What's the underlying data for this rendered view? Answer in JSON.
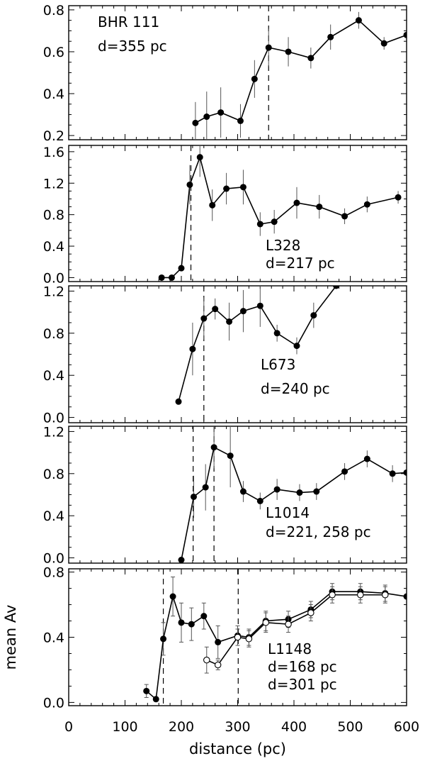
{
  "chart_data": [
    {
      "type": "line",
      "name": "BHR 111",
      "annotation": [
        "BHR 111",
        "d=355 pc"
      ],
      "xlim": [
        0,
        600
      ],
      "ylim": [
        0.18,
        0.82
      ],
      "yticks": [
        0.2,
        0.4,
        0.6,
        0.8
      ],
      "yticklabels": [
        "0.2",
        "0.4",
        "0.6",
        "0.8"
      ],
      "distance_markers": [
        355
      ],
      "series": [
        {
          "marker": "filled",
          "x": [
            225,
            245,
            270,
            305,
            330,
            355,
            390,
            430,
            465,
            515,
            560,
            600
          ],
          "y": [
            0.26,
            0.29,
            0.31,
            0.27,
            0.47,
            0.62,
            0.6,
            0.57,
            0.67,
            0.75,
            0.64,
            0.68
          ],
          "err": [
            0.1,
            0.12,
            0.12,
            0.08,
            0.09,
            0.09,
            0.07,
            0.05,
            0.06,
            0.04,
            0.03,
            0.0
          ]
        }
      ]
    },
    {
      "type": "line",
      "name": "L328",
      "annotation": [
        "L328",
        "d=217 pc"
      ],
      "xlim": [
        0,
        600
      ],
      "ylim": [
        -0.05,
        1.68
      ],
      "yticks": [
        0.0,
        0.4,
        0.8,
        1.2,
        1.6
      ],
      "yticklabels": [
        "0.0",
        "0.4",
        "0.8",
        "1.2",
        "1.6"
      ],
      "distance_markers": [
        217
      ],
      "series": [
        {
          "marker": "filled",
          "x": [
            165,
            183,
            200,
            215,
            233,
            255,
            280,
            310,
            340,
            365,
            405,
            445,
            490,
            530,
            585
          ],
          "y": [
            0.0,
            0.0,
            0.12,
            1.18,
            1.53,
            0.92,
            1.13,
            1.15,
            0.68,
            0.71,
            0.95,
            0.9,
            0.78,
            0.93,
            1.02
          ],
          "err": [
            0.0,
            0.0,
            0.0,
            0.25,
            0.25,
            0.2,
            0.2,
            0.22,
            0.15,
            0.15,
            0.2,
            0.15,
            0.1,
            0.1,
            0.08
          ]
        }
      ]
    },
    {
      "type": "line",
      "name": "L673",
      "annotation": [
        "L673",
        "d=240 pc"
      ],
      "xlim": [
        0,
        600
      ],
      "ylim": [
        -0.05,
        1.25
      ],
      "yticks": [
        0.0,
        0.4,
        0.8,
        1.2
      ],
      "yticklabels": [
        "0.0",
        "0.4",
        "0.8",
        "1.2"
      ],
      "distance_markers": [
        240
      ],
      "series": [
        {
          "marker": "filled",
          "x": [
            195,
            220,
            240,
            260,
            285,
            310,
            340,
            370,
            405,
            435,
            475
          ],
          "y": [
            0.15,
            0.65,
            0.94,
            1.03,
            0.91,
            1.01,
            1.06,
            0.8,
            0.68,
            0.97,
            1.25
          ],
          "err": [
            0.0,
            0.25,
            0.2,
            0.1,
            0.18,
            0.2,
            0.2,
            0.08,
            0.08,
            0.12,
            0.0
          ]
        }
      ]
    },
    {
      "type": "line",
      "name": "L1014",
      "annotation": [
        "L1014",
        "d=221, 258 pc"
      ],
      "xlim": [
        0,
        600
      ],
      "ylim": [
        -0.05,
        1.25
      ],
      "yticks": [
        0.0,
        0.4,
        0.8,
        1.2
      ],
      "yticklabels": [
        "0.0",
        "0.4",
        "0.8",
        "1.2"
      ],
      "distance_markers": [
        221,
        258
      ],
      "series": [
        {
          "marker": "filled",
          "x": [
            200,
            222,
            243,
            258,
            287,
            310,
            340,
            370,
            410,
            440,
            490,
            530,
            575,
            600
          ],
          "y": [
            -0.02,
            0.58,
            0.67,
            1.05,
            0.97,
            0.63,
            0.54,
            0.65,
            0.62,
            0.63,
            0.82,
            0.94,
            0.8,
            0.81
          ],
          "err": [
            0.0,
            0.2,
            0.22,
            0.2,
            0.3,
            0.1,
            0.08,
            0.1,
            0.08,
            0.08,
            0.08,
            0.08,
            0.08,
            0.0
          ]
        }
      ]
    },
    {
      "type": "line",
      "name": "L1148",
      "annotation": [
        "L1148",
        "d=168 pc",
        "d=301 pc"
      ],
      "xlabel": "distance (pc)",
      "ylabel": "mean Av",
      "xlim": [
        0,
        600
      ],
      "ylim": [
        -0.02,
        0.82
      ],
      "xticks": [
        0,
        100,
        200,
        300,
        400,
        500,
        600
      ],
      "xticklabels": [
        "0",
        "100",
        "200",
        "300",
        "400",
        "500",
        "600"
      ],
      "yticks": [
        0.0,
        0.4,
        0.8
      ],
      "yticklabels": [
        "0.0",
        "0.4",
        "0.8"
      ],
      "distance_markers": [
        168,
        301
      ],
      "series": [
        {
          "marker": "filled",
          "x": [
            138,
            155,
            168,
            185,
            200,
            218,
            240,
            265,
            300,
            320,
            350,
            390,
            430,
            468,
            518,
            562,
            600
          ],
          "y": [
            0.07,
            0.02,
            0.39,
            0.65,
            0.49,
            0.48,
            0.53,
            0.37,
            0.41,
            0.4,
            0.5,
            0.51,
            0.57,
            0.68,
            0.68,
            0.67,
            0.65
          ],
          "err": [
            0.04,
            0.0,
            0.1,
            0.12,
            0.12,
            0.1,
            0.08,
            0.1,
            0.06,
            0.05,
            0.06,
            0.05,
            0.05,
            0.05,
            0.05,
            0.05,
            0.0
          ]
        },
        {
          "marker": "open",
          "x": [
            245,
            265,
            300,
            320,
            350,
            390,
            430,
            468,
            518,
            562
          ],
          "y": [
            0.26,
            0.23,
            0.4,
            0.39,
            0.49,
            0.48,
            0.55,
            0.66,
            0.66,
            0.66
          ],
          "err": [
            0.08,
            0.03,
            0.05,
            0.05,
            0.06,
            0.05,
            0.05,
            0.05,
            0.05,
            0.05
          ]
        }
      ]
    }
  ]
}
